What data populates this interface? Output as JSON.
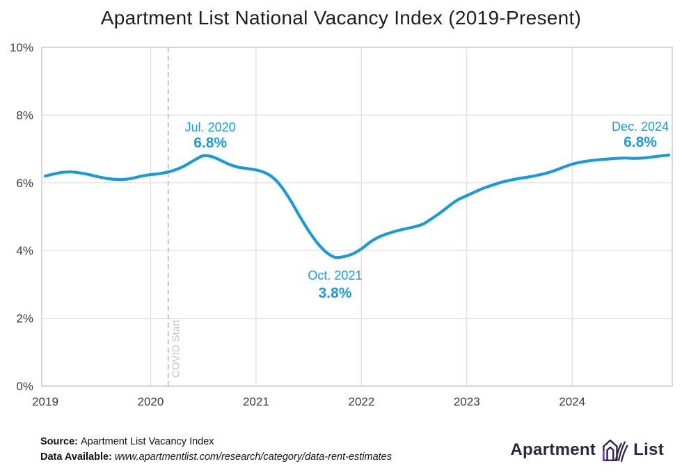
{
  "title": "Apartment List National Vacancy Index (2019-Present)",
  "chart_data": {
    "type": "line",
    "title": "Apartment List National Vacancy Index (2019-Present)",
    "series_name": "National Vacancy Index",
    "x_start_month": "Jan 2019",
    "x_end_month": "Dec 2024",
    "x_tick_labels": [
      "2019",
      "2020",
      "2021",
      "2022",
      "2023",
      "2024"
    ],
    "x_tick_month_indices": [
      0,
      12,
      24,
      36,
      48,
      60
    ],
    "y_tick_labels": [
      "0%",
      "2%",
      "4%",
      "6%",
      "8%",
      "10%"
    ],
    "y_ticks": [
      0,
      2,
      4,
      6,
      8,
      10
    ],
    "ylim": [
      0,
      10
    ],
    "grid": true,
    "values": [
      6.2,
      6.26,
      6.31,
      6.32,
      6.29,
      6.24,
      6.18,
      6.13,
      6.1,
      6.1,
      6.14,
      6.2,
      6.24,
      6.27,
      6.32,
      6.4,
      6.52,
      6.67,
      6.8,
      6.77,
      6.66,
      6.54,
      6.46,
      6.42,
      6.38,
      6.3,
      6.14,
      5.85,
      5.45,
      5.0,
      4.58,
      4.22,
      3.95,
      3.8,
      3.82,
      3.9,
      4.05,
      4.25,
      4.4,
      4.5,
      4.58,
      4.64,
      4.7,
      4.78,
      4.94,
      5.12,
      5.32,
      5.5,
      5.62,
      5.74,
      5.85,
      5.94,
      6.02,
      6.08,
      6.13,
      6.17,
      6.22,
      6.28,
      6.36,
      6.46,
      6.55,
      6.61,
      6.65,
      6.68,
      6.7,
      6.72,
      6.73,
      6.72,
      6.73,
      6.76,
      6.79,
      6.82
    ],
    "annotations": [
      {
        "label": "Jul. 2020",
        "value": "6.8%",
        "month_index": 18,
        "placement": "above",
        "dx": 10
      },
      {
        "label": "Oct. 2021",
        "value": "3.8%",
        "month_index": 33,
        "placement": "below",
        "dx": 0
      },
      {
        "label": "Dec. 2024",
        "value": "6.8%",
        "month_index": 71,
        "placement": "above",
        "dx": -41
      }
    ],
    "covid_marker": {
      "label": "COVID Start",
      "month_index": 14
    },
    "colors": {
      "line": "#1b9ad6",
      "annotation_text": "#1b9ad6",
      "grid": "#dcdde0",
      "plot_border": "#c8cccf",
      "axis_text": "#3b3b3b",
      "covid_line": "#b5b5b5",
      "covid_text": "#c6c6c6"
    }
  },
  "footer": {
    "source_label": "Source:",
    "source_value": "Apartment List Vacancy Index",
    "data_available_label": "Data Available:",
    "data_available_value": "www.apartmentlist.com/research/category/data-rent-estimates"
  },
  "logo": {
    "word_left": "Apartment",
    "word_right": "List"
  }
}
